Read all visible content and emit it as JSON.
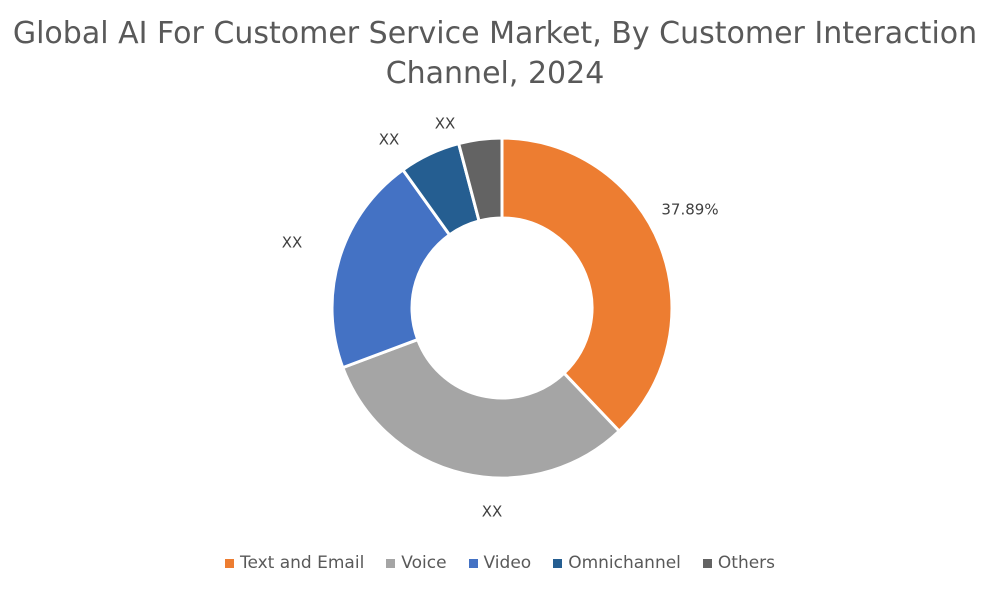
{
  "chart_data": {
    "type": "pie",
    "variant": "donut",
    "title": "Global AI For Customer Service Market, By Customer Interaction Channel, 2024",
    "categories": [
      "Text and Email",
      "Voice",
      "Video",
      "Omnichannel",
      "Others"
    ],
    "values": [
      37.89,
      31.4,
      20.8,
      5.8,
      4.1
    ],
    "data_labels": [
      "37.89%",
      "XX",
      "XX",
      "XX",
      "XX"
    ],
    "colors": [
      "#ED7D31",
      "#A5A5A5",
      "#4472C4",
      "#255E91",
      "#636363"
    ],
    "legend_position": "bottom"
  }
}
